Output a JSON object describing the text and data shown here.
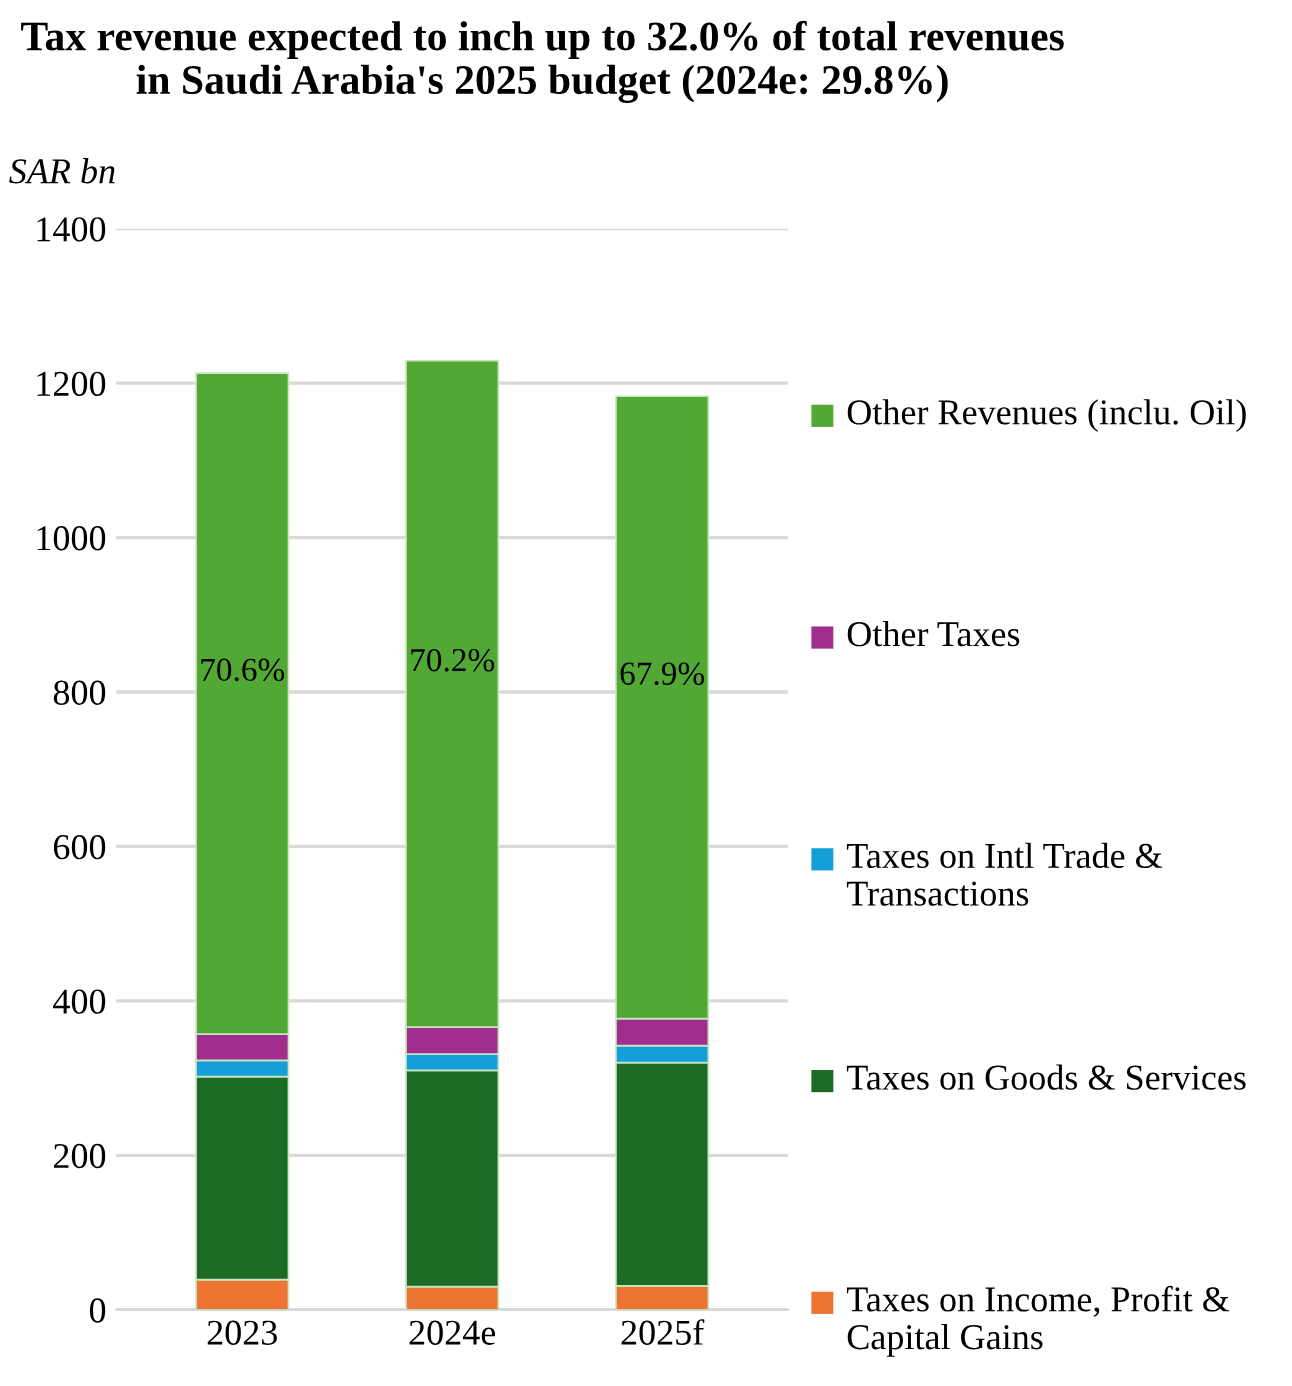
{
  "chart_data": {
    "type": "bar",
    "stacked": true,
    "title": "Tax revenue expected to inch up to 32.0% of total revenues in Saudi Arabia's 2025 budget (2024e: 29.8%)",
    "ylabel": "SAR bn",
    "categories": [
      "2023",
      "2024e",
      "2025f"
    ],
    "series": [
      {
        "name": "Taxes on Income, Profit & Capital Gains",
        "color": "#ed7433",
        "values": [
          39,
          30,
          31
        ]
      },
      {
        "name": "Taxes on Goods & Services",
        "color": "#1c6b24",
        "values": [
          263,
          280,
          289
        ]
      },
      {
        "name": "Taxes on Intl Trade & Transactions",
        "color": "#159fd8",
        "values": [
          21,
          21,
          22
        ]
      },
      {
        "name": "Other Taxes",
        "color": "#a12d8f",
        "values": [
          34,
          35,
          35
        ]
      },
      {
        "name": "Other Revenues (inclu. Oil)",
        "color": "#52a834",
        "values": [
          856,
          863,
          806
        ]
      }
    ],
    "annotations": [
      "70.6%",
      "70.2%",
      "67.9%"
    ],
    "ylim": [
      0,
      1400
    ],
    "yticks": [
      0,
      200,
      400,
      600,
      800,
      1000,
      1200,
      1400
    ],
    "grid": "y",
    "legend": "right"
  }
}
